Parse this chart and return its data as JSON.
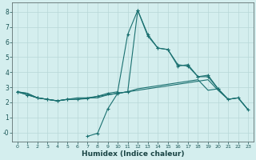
{
  "xlabel": "Humidex (Indice chaleur)",
  "x": [
    0,
    1,
    2,
    3,
    4,
    5,
    6,
    7,
    8,
    9,
    10,
    11,
    12,
    13,
    14,
    15,
    16,
    17,
    18,
    19,
    20,
    21,
    22,
    23
  ],
  "line_flat": [
    2.7,
    2.6,
    2.3,
    2.2,
    2.1,
    2.2,
    2.2,
    2.3,
    2.3,
    2.5,
    2.6,
    2.7,
    2.8,
    2.9,
    3.0,
    3.1,
    3.2,
    3.3,
    3.4,
    3.5,
    2.8,
    2.2,
    2.3,
    1.5
  ],
  "line_slope": [
    2.7,
    2.6,
    2.3,
    2.2,
    2.1,
    2.2,
    2.3,
    2.3,
    2.4,
    2.5,
    2.6,
    2.7,
    2.9,
    3.0,
    3.1,
    3.2,
    3.3,
    3.4,
    3.5,
    2.8,
    2.9,
    2.2,
    2.3,
    1.5
  ],
  "line_peak_x": [
    0,
    1,
    2,
    3,
    4,
    5,
    6,
    7,
    8,
    9,
    10,
    11,
    12,
    13,
    14,
    15,
    16,
    17,
    18,
    19,
    20,
    21,
    22,
    23
  ],
  "line_peak": [
    2.7,
    2.5,
    2.3,
    2.2,
    2.1,
    2.2,
    2.2,
    2.25,
    2.4,
    2.6,
    2.7,
    6.5,
    8.1,
    6.4,
    5.6,
    5.5,
    4.4,
    4.5,
    3.7,
    3.7,
    2.9,
    2.2,
    2.3,
    1.5
  ],
  "line_dip_x": [
    0,
    1,
    2,
    3,
    4,
    5,
    6,
    7,
    8,
    9,
    10,
    11,
    12,
    13,
    14,
    15,
    16,
    17,
    18,
    19,
    20,
    21,
    22,
    23
  ],
  "line_dip": [
    2.7,
    2.5,
    2.3,
    2.2,
    2.1,
    2.2,
    null,
    -0.25,
    -0.05,
    1.55,
    2.6,
    2.7,
    8.1,
    6.5,
    5.6,
    5.5,
    4.5,
    4.4,
    3.7,
    3.8,
    2.9,
    null,
    null,
    null
  ],
  "line_color": "#1a7070",
  "marker_color": "#1a7070",
  "bg_color": "#d4eeee",
  "grid_color": "#b8d8d8",
  "ylim": [
    -0.6,
    8.6
  ],
  "xlim": [
    -0.5,
    23.5
  ],
  "yticks": [
    0,
    1,
    2,
    3,
    4,
    5,
    6,
    7,
    8
  ],
  "ytick_labels": [
    "-0",
    "1",
    "2",
    "3",
    "4",
    "5",
    "6",
    "7",
    "8"
  ],
  "xticks": [
    0,
    1,
    2,
    3,
    4,
    5,
    6,
    7,
    8,
    9,
    10,
    11,
    12,
    13,
    14,
    15,
    16,
    17,
    18,
    19,
    20,
    21,
    22,
    23
  ]
}
